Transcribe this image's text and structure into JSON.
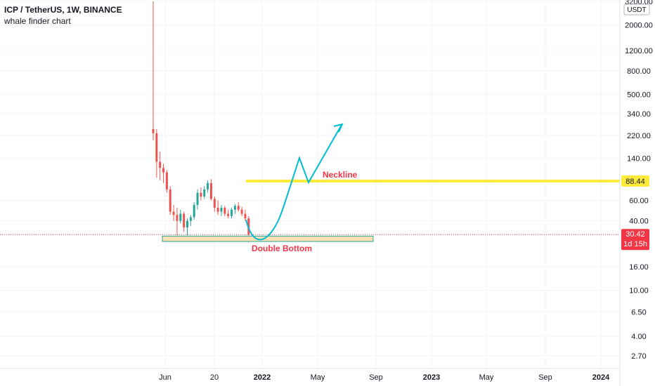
{
  "header": {
    "title": "ICP / TetherUS, 1W, BINANCE",
    "subtitle": "whale finder chart"
  },
  "currency_label": "USDT",
  "colors": {
    "up": "#26a69a",
    "down": "#ef5350",
    "grid": "#f0f3fa",
    "axis_text": "#131722",
    "neckline": "#ffeb3b",
    "neckline_label": "#f23645",
    "support_fill": "#ffe0b2",
    "support_border": "#26a69a",
    "projection": "#00bcd4",
    "price_tag": "#f23645",
    "neckline_tag": "#ffeb3b"
  },
  "chart_data": {
    "type": "candlestick",
    "symbol": "ICP / TetherUS",
    "timeframe": "1W",
    "exchange": "BINANCE",
    "y_scale": "log",
    "y_ticks": [
      "3200.00",
      "2000.00",
      "1200.00",
      "800.00",
      "500.00",
      "340.00",
      "220.00",
      "140.00",
      "60.00",
      "40.00",
      "16.00",
      "10.00",
      "6.50",
      "4.00",
      "2.70"
    ],
    "x_ticks": [
      "Jun",
      "20",
      "2022",
      "May",
      "Sep",
      "2023",
      "May",
      "Sep",
      "2024"
    ],
    "candles": [
      {
        "o": 250,
        "h": 3200,
        "l": 200,
        "c": 230
      },
      {
        "o": 230,
        "h": 250,
        "l": 95,
        "c": 130
      },
      {
        "o": 130,
        "h": 160,
        "l": 90,
        "c": 115
      },
      {
        "o": 115,
        "h": 125,
        "l": 85,
        "c": 105
      },
      {
        "o": 105,
        "h": 110,
        "l": 70,
        "c": 75
      },
      {
        "o": 75,
        "h": 80,
        "l": 45,
        "c": 48
      },
      {
        "o": 48,
        "h": 55,
        "l": 40,
        "c": 45
      },
      {
        "o": 45,
        "h": 52,
        "l": 30,
        "c": 40
      },
      {
        "o": 40,
        "h": 50,
        "l": 38,
        "c": 46
      },
      {
        "o": 46,
        "h": 48,
        "l": 32,
        "c": 35
      },
      {
        "o": 35,
        "h": 42,
        "l": 30,
        "c": 40
      },
      {
        "o": 40,
        "h": 45,
        "l": 36,
        "c": 43
      },
      {
        "o": 43,
        "h": 58,
        "l": 41,
        "c": 55
      },
      {
        "o": 55,
        "h": 75,
        "l": 50,
        "c": 70
      },
      {
        "o": 70,
        "h": 78,
        "l": 60,
        "c": 65
      },
      {
        "o": 65,
        "h": 80,
        "l": 62,
        "c": 75
      },
      {
        "o": 75,
        "h": 90,
        "l": 70,
        "c": 85
      },
      {
        "o": 85,
        "h": 92,
        "l": 60,
        "c": 62
      },
      {
        "o": 62,
        "h": 65,
        "l": 48,
        "c": 52
      },
      {
        "o": 52,
        "h": 60,
        "l": 45,
        "c": 48
      },
      {
        "o": 48,
        "h": 55,
        "l": 44,
        "c": 52
      },
      {
        "o": 52,
        "h": 54,
        "l": 44,
        "c": 46
      },
      {
        "o": 46,
        "h": 50,
        "l": 42,
        "c": 44
      },
      {
        "o": 44,
        "h": 52,
        "l": 42,
        "c": 50
      },
      {
        "o": 50,
        "h": 56,
        "l": 46,
        "c": 54
      },
      {
        "o": 54,
        "h": 58,
        "l": 48,
        "c": 50
      },
      {
        "o": 50,
        "h": 53,
        "l": 44,
        "c": 46
      },
      {
        "o": 46,
        "h": 50,
        "l": 40,
        "c": 42
      },
      {
        "o": 42,
        "h": 44,
        "l": 26,
        "c": 30.42
      }
    ],
    "current_price": "30.42",
    "countdown": "1d 15h",
    "neckline_price": "88.44",
    "annotations": {
      "neckline": "Neckline",
      "double_bottom": "Double Bottom"
    }
  }
}
